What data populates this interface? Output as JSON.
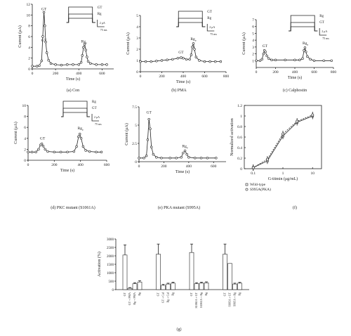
{
  "chart_data": [
    {
      "id": "a",
      "type": "line",
      "caption": "(a) Con",
      "xlabel": "Time (s)",
      "ylabel": "Current (μA)",
      "xlim": [
        0,
        700
      ],
      "ylim": [
        0,
        12
      ],
      "xticks": [
        0,
        200,
        400,
        600
      ],
      "yticks": [
        0,
        2,
        4,
        6,
        8,
        10,
        12
      ],
      "annotations": [
        {
          "text": "GT",
          "x": 100,
          "y": 10.6
        },
        {
          "text": "Rg",
          "sub": "p",
          "x": 445,
          "y": 4.6
        },
        {
          "text": "GT",
          "x": 100,
          "y": 4.8
        }
      ],
      "inset": {
        "labels": [
          "GT",
          "Rg"
        ],
        "scale_y": "2 μA",
        "scale_x": "75 ms"
      },
      "series": [
        {
          "x": [
            0,
            40,
            60,
            80,
            90,
            100,
            108,
            115,
            125,
            140,
            160,
            200,
            250,
            300,
            350,
            400,
            420,
            430,
            440,
            450,
            460,
            470,
            480,
            500,
            550,
            600,
            640
          ],
          "y": [
            0.5,
            0.5,
            0.6,
            1.5,
            6,
            10.5,
            8,
            5,
            3,
            1.6,
            1,
            0.8,
            0.7,
            0.8,
            0.8,
            0.8,
            1.2,
            2.5,
            4,
            4.6,
            3.5,
            2.2,
            1.4,
            1,
            0.8,
            0.8,
            0.8
          ]
        }
      ]
    },
    {
      "id": "b",
      "type": "line",
      "caption": "(b) PMA",
      "xlabel": "Time (s)",
      "ylabel": "Current (μA)",
      "xlim": [
        0,
        800
      ],
      "ylim": [
        0,
        5
      ],
      "xticks": [
        0,
        200,
        400,
        600,
        800
      ],
      "yticks": [
        0,
        1,
        2,
        3,
        4,
        5
      ],
      "annotations": [
        {
          "text": "GT",
          "x": 380,
          "y": 1.5
        },
        {
          "text": "Rg",
          "sub": "p",
          "x": 495,
          "y": 2.7
        }
      ],
      "inset": {
        "labels": [
          "GT",
          "Rg"
        ],
        "scale_y": "2 μA",
        "scale_x": "75 ms"
      },
      "series": [
        {
          "x": [
            0,
            50,
            100,
            150,
            200,
            250,
            300,
            350,
            380,
            400,
            430,
            460,
            475,
            485,
            495,
            505,
            520,
            550,
            600,
            650,
            700,
            750
          ],
          "y": [
            0.9,
            0.9,
            0.9,
            0.95,
            1,
            1.05,
            1.1,
            1.2,
            1.25,
            1.2,
            1.1,
            1.1,
            1.5,
            2.2,
            2.5,
            2,
            1.3,
            1,
            0.9,
            0.9,
            0.9,
            0.9
          ]
        }
      ]
    },
    {
      "id": "c",
      "type": "line",
      "caption": "(c) Calphostin",
      "xlabel": "Time (s)",
      "ylabel": "Current (μA)",
      "xlim": [
        0,
        800
      ],
      "ylim": [
        0,
        7
      ],
      "xticks": [
        0,
        200,
        400,
        600,
        800
      ],
      "yticks": [
        1,
        2,
        3,
        4,
        5,
        6,
        7
      ],
      "annotations": [
        {
          "text": "GT",
          "x": 90,
          "y": 2.8
        },
        {
          "text": "Rg",
          "sub": "p",
          "x": 510,
          "y": 3.2
        }
      ],
      "inset": {
        "labels": [
          "Rg",
          "GT"
        ],
        "scale_y": "2 μA",
        "scale_x": "75 ms"
      },
      "series": [
        {
          "x": [
            0,
            40,
            60,
            75,
            85,
            95,
            110,
            130,
            160,
            200,
            300,
            400,
            450,
            480,
            495,
            505,
            515,
            530,
            560,
            600,
            700,
            780
          ],
          "y": [
            1,
            1,
            1.2,
            2,
            2.5,
            2.3,
            1.7,
            1.3,
            1.1,
            1.1,
            1.1,
            1.1,
            1.1,
            1.3,
            2.5,
            2.9,
            2.3,
            1.6,
            1.2,
            1,
            1,
            1
          ]
        }
      ]
    },
    {
      "id": "d",
      "type": "line",
      "caption": "(d) PKC mutant (S1061A)",
      "xlabel": "Time (s)",
      "ylabel": "Current (μA)",
      "xlim": [
        0,
        600
      ],
      "ylim": [
        0,
        10
      ],
      "xticks": [
        0,
        200,
        400,
        600
      ],
      "yticks": [
        0,
        2,
        4,
        6,
        8,
        10
      ],
      "annotations": [
        {
          "text": "GT",
          "x": 110,
          "y": 3.5
        },
        {
          "text": "Rg",
          "sub": "p",
          "x": 400,
          "y": 5.4
        }
      ],
      "inset": {
        "labels": [
          "Rg",
          "GT"
        ],
        "scale_y": "2 μA",
        "scale_x": "75 ms"
      },
      "series": [
        {
          "x": [
            0,
            30,
            60,
            80,
            95,
            105,
            115,
            130,
            150,
            200,
            250,
            300,
            350,
            370,
            385,
            395,
            405,
            420,
            440,
            470,
            520,
            560
          ],
          "y": [
            1.5,
            1.5,
            1.5,
            2,
            2.8,
            3,
            2.6,
            2,
            1.6,
            1.5,
            1.5,
            1.5,
            1.6,
            2.5,
            4.3,
            4.8,
            4,
            2.5,
            1.8,
            1.6,
            1.5,
            1.5
          ]
        }
      ]
    },
    {
      "id": "e",
      "type": "line",
      "caption": "(e) PKA mutant (S995A)",
      "xlabel": "Time (s)",
      "ylabel": "Current (μA)",
      "xlim": [
        0,
        700
      ],
      "ylim": [
        0,
        7.5
      ],
      "xticks": [
        0,
        200,
        400,
        600
      ],
      "yticks": [
        0,
        2.5,
        5,
        7.5
      ],
      "annotations": [
        {
          "text": "GT",
          "x": 80,
          "y": 6.4
        },
        {
          "text": "Rg",
          "sub": "p",
          "x": 370,
          "y": 1.8
        }
      ],
      "series": [
        {
          "x": [
            0,
            40,
            60,
            70,
            80,
            90,
            100,
            115,
            140,
            180,
            250,
            300,
            340,
            355,
            370,
            385,
            400,
            450,
            500,
            550,
            620
          ],
          "y": [
            0.5,
            0.5,
            0.8,
            3,
            5.8,
            4.5,
            2,
            1,
            0.6,
            0.5,
            0.5,
            0.5,
            0.6,
            1.2,
            1.5,
            1,
            0.6,
            0.5,
            0.5,
            0.5,
            0.5
          ]
        }
      ]
    },
    {
      "id": "f",
      "type": "scatter",
      "caption": "(f)",
      "xlabel": "G-titmin (μg/mL)",
      "ylabel": "Normalized activation",
      "xscale": "log",
      "xlim": [
        0.05,
        20
      ],
      "ylim": [
        0,
        1.2
      ],
      "xticks": [
        0.1,
        1,
        10
      ],
      "yticks": [
        0,
        0.2,
        0.4,
        0.6,
        0.8,
        1,
        1.2
      ],
      "series": [
        {
          "name": "Wild-type",
          "x": [
            0.1,
            0.3,
            1,
            3,
            10
          ],
          "y": [
            0.02,
            0.15,
            0.62,
            0.88,
            1.0
          ]
        },
        {
          "name": "S995A(PKA)",
          "x": [
            0.1,
            0.3,
            1,
            3,
            10
          ],
          "y": [
            0.02,
            0.18,
            0.66,
            0.9,
            1.02
          ]
        }
      ],
      "legend": [
        "Wild-type",
        "S995A(PKA)"
      ]
    },
    {
      "id": "g",
      "type": "bar",
      "caption": "(g)",
      "ylabel": "Activation (%)",
      "ylim": [
        0,
        3000
      ],
      "yticks": [
        0,
        500,
        1000,
        1500,
        2000,
        2500,
        3000
      ],
      "groups": [
        {
          "labels": [
            "GT",
            "GT + PMA",
            "Rg + PMA",
            "Rg"
          ],
          "values": [
            2050,
            80,
            350,
            450
          ],
          "errors": [
            600,
            40,
            60,
            80
          ]
        },
        {
          "labels": [
            "GT",
            "GT + Cal",
            "Rg + Cal",
            "Rg"
          ],
          "values": [
            2100,
            250,
            330,
            380
          ],
          "errors": [
            600,
            60,
            50,
            60
          ]
        },
        {
          "labels": [
            "GT",
            "S1061A + GT",
            "S1061A + Rg",
            "Rg"
          ],
          "values": [
            2200,
            350,
            380,
            400
          ],
          "errors": [
            500,
            60,
            60,
            60
          ]
        },
        {
          "labels": [
            "GT",
            "S995A + GT",
            "S995A + Rg",
            "Rg"
          ],
          "values": [
            2100,
            1550,
            330,
            380
          ],
          "errors": [
            600,
            0,
            50,
            50
          ]
        }
      ]
    }
  ]
}
